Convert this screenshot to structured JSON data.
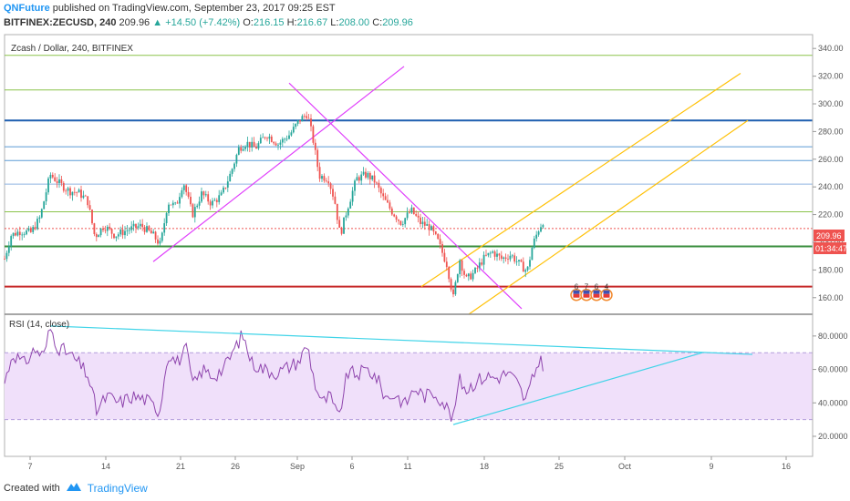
{
  "header": {
    "author": "QNFuture",
    "published": "published on TradingView.com, September 23, 2017 09:25 EST",
    "symbol": "BITFINEX:ZECUSD, 240",
    "last": "209.96",
    "change": "+14.50 (+7.42%)",
    "o_label": "O:",
    "o": "216.15",
    "h_label": "H:",
    "h": "216.67",
    "l_label": "L:",
    "l": "208.00",
    "c_label": "C:",
    "c": "209.96"
  },
  "footer": {
    "created_with": "Created with",
    "brand": "TradingView"
  },
  "colors": {
    "up": "#26a69a",
    "down": "#ef5350",
    "rsi": "#8e44ad",
    "rsi_band": "#f0e0fa",
    "accent": "#2196f3"
  },
  "chart_data": [
    {
      "type": "candlestick",
      "title": "Zcash / Dollar, 240, BITFINEX",
      "ylim": [
        148,
        350
      ],
      "yticks": [
        160,
        180,
        200,
        220,
        240,
        260,
        280,
        300,
        320,
        340
      ],
      "ytick_labels": [
        "160.00",
        "180.00",
        "200.00",
        "220.00",
        "240.00",
        "260.00",
        "280.00",
        "300.00",
        "320.00",
        "340.00"
      ],
      "x_labels": [
        "7",
        "14",
        "21",
        "26",
        "Sep",
        "6",
        "11",
        "18",
        "25",
        "Oct",
        "9",
        "16"
      ],
      "price_label": "209.96",
      "countdown_label": "01:34:47",
      "anchors": [
        {
          "x": 5,
          "p": 188
        },
        {
          "x": 12,
          "p": 205
        },
        {
          "x": 22,
          "p": 208
        },
        {
          "x": 34,
          "p": 207
        },
        {
          "x": 44,
          "p": 218
        },
        {
          "x": 55,
          "p": 249
        },
        {
          "x": 66,
          "p": 242
        },
        {
          "x": 76,
          "p": 237
        },
        {
          "x": 86,
          "p": 236
        },
        {
          "x": 96,
          "p": 230
        },
        {
          "x": 104,
          "p": 204
        },
        {
          "x": 114,
          "p": 212
        },
        {
          "x": 126,
          "p": 205
        },
        {
          "x": 140,
          "p": 209
        },
        {
          "x": 155,
          "p": 212
        },
        {
          "x": 168,
          "p": 205
        },
        {
          "x": 176,
          "p": 198
        },
        {
          "x": 184,
          "p": 229
        },
        {
          "x": 193,
          "p": 226
        },
        {
          "x": 201,
          "p": 244
        },
        {
          "x": 211,
          "p": 220
        },
        {
          "x": 221,
          "p": 235
        },
        {
          "x": 232,
          "p": 228
        },
        {
          "x": 243,
          "p": 234
        },
        {
          "x": 253,
          "p": 250
        },
        {
          "x": 262,
          "p": 268
        },
        {
          "x": 270,
          "p": 272
        },
        {
          "x": 280,
          "p": 268
        },
        {
          "x": 292,
          "p": 278
        },
        {
          "x": 305,
          "p": 271
        },
        {
          "x": 318,
          "p": 278
        },
        {
          "x": 328,
          "p": 288
        },
        {
          "x": 337,
          "p": 293
        },
        {
          "x": 343,
          "p": 275
        },
        {
          "x": 350,
          "p": 248
        },
        {
          "x": 360,
          "p": 246
        },
        {
          "x": 367,
          "p": 230
        },
        {
          "x": 373,
          "p": 205
        },
        {
          "x": 381,
          "p": 225
        },
        {
          "x": 391,
          "p": 246
        },
        {
          "x": 402,
          "p": 249
        },
        {
          "x": 411,
          "p": 244
        },
        {
          "x": 420,
          "p": 232
        },
        {
          "x": 430,
          "p": 222
        },
        {
          "x": 440,
          "p": 214
        },
        {
          "x": 451,
          "p": 223
        },
        {
          "x": 461,
          "p": 214
        },
        {
          "x": 471,
          "p": 211
        },
        {
          "x": 480,
          "p": 201
        },
        {
          "x": 490,
          "p": 184
        },
        {
          "x": 497,
          "p": 160
        },
        {
          "x": 504,
          "p": 188
        },
        {
          "x": 511,
          "p": 173
        },
        {
          "x": 520,
          "p": 178
        },
        {
          "x": 530,
          "p": 188
        },
        {
          "x": 540,
          "p": 193
        },
        {
          "x": 550,
          "p": 188
        },
        {
          "x": 560,
          "p": 191
        },
        {
          "x": 570,
          "p": 184
        },
        {
          "x": 578,
          "p": 179
        },
        {
          "x": 584,
          "p": 198
        },
        {
          "x": 591,
          "p": 210
        },
        {
          "x": 596,
          "p": 216
        }
      ],
      "hlines": [
        {
          "p": 335,
          "color": "#8bc34a"
        },
        {
          "p": 310,
          "color": "#8bc34a"
        },
        {
          "p": 288,
          "color": "#1e5fb0",
          "width": 2
        },
        {
          "p": 269,
          "color": "#5b9bd5"
        },
        {
          "p": 259,
          "color": "#5b9bd5"
        },
        {
          "p": 242,
          "color": "#8fb4e0"
        },
        {
          "p": 222,
          "color": "#8bc34a"
        },
        {
          "p": 197,
          "color": "#388e3c",
          "width": 2
        },
        {
          "p": 168,
          "color": "#c62828",
          "width": 2
        },
        {
          "p": 209.96,
          "color": "#ef5350",
          "dash": true
        }
      ],
      "trendlines": [
        {
          "from": {
            "x": 168,
            "p": 186
          },
          "to": {
            "x": 443,
            "p": 327
          },
          "color": "#e040fb"
        },
        {
          "from": {
            "x": 317,
            "p": 315
          },
          "to": {
            "x": 572,
            "p": 152
          },
          "color": "#e040fb"
        },
        {
          "from": {
            "x": 462,
            "p": 168
          },
          "to": {
            "x": 812,
            "p": 322
          },
          "color": "#ffc107"
        },
        {
          "from": {
            "x": 514,
            "p": 148
          },
          "to": {
            "x": 820,
            "p": 288
          },
          "color": "#ffc107"
        }
      ],
      "events": [
        "6",
        "7",
        "6",
        "4"
      ]
    },
    {
      "type": "line",
      "title": "RSI (14, close)",
      "ylim": [
        8,
        93
      ],
      "yticks": [
        20,
        40,
        60,
        80
      ],
      "ytick_labels": [
        "20.0000",
        "40.0000",
        "60.0000",
        "80.0000"
      ],
      "bands": [
        30,
        70
      ],
      "series": [
        {
          "values": [
            {
              "x": 5,
              "v": 52
            },
            {
              "x": 14,
              "v": 70
            },
            {
              "x": 26,
              "v": 63
            },
            {
              "x": 38,
              "v": 72
            },
            {
              "x": 48,
              "v": 68
            },
            {
              "x": 55,
              "v": 85
            },
            {
              "x": 64,
              "v": 73
            },
            {
              "x": 74,
              "v": 70
            },
            {
              "x": 84,
              "v": 65
            },
            {
              "x": 96,
              "v": 57
            },
            {
              "x": 106,
              "v": 35
            },
            {
              "x": 117,
              "v": 44
            },
            {
              "x": 131,
              "v": 40
            },
            {
              "x": 145,
              "v": 44
            },
            {
              "x": 160,
              "v": 42
            },
            {
              "x": 175,
              "v": 35
            },
            {
              "x": 184,
              "v": 70
            },
            {
              "x": 194,
              "v": 64
            },
            {
              "x": 204,
              "v": 72
            },
            {
              "x": 212,
              "v": 50
            },
            {
              "x": 222,
              "v": 60
            },
            {
              "x": 234,
              "v": 56
            },
            {
              "x": 246,
              "v": 61
            },
            {
              "x": 256,
              "v": 71
            },
            {
              "x": 266,
              "v": 81
            },
            {
              "x": 276,
              "v": 64
            },
            {
              "x": 290,
              "v": 60
            },
            {
              "x": 304,
              "v": 58
            },
            {
              "x": 318,
              "v": 62
            },
            {
              "x": 328,
              "v": 65
            },
            {
              "x": 337,
              "v": 75
            },
            {
              "x": 345,
              "v": 52
            },
            {
              "x": 353,
              "v": 40
            },
            {
              "x": 362,
              "v": 44
            },
            {
              "x": 371,
              "v": 30
            },
            {
              "x": 381,
              "v": 58
            },
            {
              "x": 391,
              "v": 57
            },
            {
              "x": 403,
              "v": 60
            },
            {
              "x": 413,
              "v": 55
            },
            {
              "x": 423,
              "v": 43
            },
            {
              "x": 434,
              "v": 45
            },
            {
              "x": 444,
              "v": 39
            },
            {
              "x": 455,
              "v": 49
            },
            {
              "x": 465,
              "v": 44
            },
            {
              "x": 477,
              "v": 46
            },
            {
              "x": 487,
              "v": 40
            },
            {
              "x": 497,
              "v": 30
            },
            {
              "x": 503,
              "v": 54
            },
            {
              "x": 512,
              "v": 48
            },
            {
              "x": 522,
              "v": 53
            },
            {
              "x": 533,
              "v": 56
            },
            {
              "x": 545,
              "v": 55
            },
            {
              "x": 557,
              "v": 58
            },
            {
              "x": 567,
              "v": 52
            },
            {
              "x": 576,
              "v": 41
            },
            {
              "x": 583,
              "v": 52
            },
            {
              "x": 591,
              "v": 66
            },
            {
              "x": 596,
              "v": 63
            }
          ]
        }
      ],
      "trendlines": [
        {
          "from": {
            "x": 55,
            "v": 86
          },
          "to": {
            "x": 825,
            "v": 69
          },
          "color": "#40d4e8"
        },
        {
          "from": {
            "x": 497,
            "v": 27
          },
          "to": {
            "x": 770,
            "v": 70
          },
          "color": "#40d4e8"
        }
      ]
    }
  ]
}
